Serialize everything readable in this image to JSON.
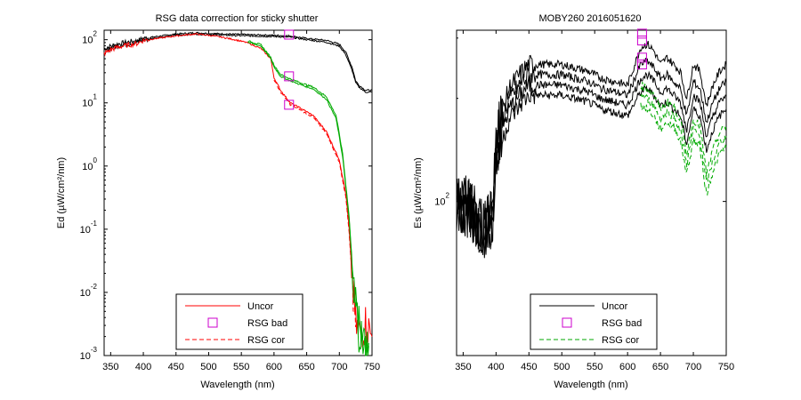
{
  "chart_data": [
    {
      "type": "line",
      "title": "RSG data correction for sticky shutter",
      "xlabel": "Wavelength (nm)",
      "ylabel": "Ed (µW/cm²/nm)",
      "xlim": [
        340,
        750
      ],
      "ylim_log10": [
        -3,
        2.15
      ],
      "yscale": "log",
      "grid": false,
      "legend_position": "lower-center",
      "x_ticks": [
        350,
        400,
        450,
        500,
        550,
        600,
        650,
        700,
        750
      ],
      "y_ticks": [
        {
          "value": 2,
          "base": "10",
          "exp": "2"
        },
        {
          "value": 1,
          "base": "10",
          "exp": "1"
        },
        {
          "value": 0,
          "base": "10",
          "exp": "0"
        },
        {
          "value": -1,
          "base": "10",
          "exp": "-1"
        },
        {
          "value": -2,
          "base": "10",
          "exp": "-2"
        },
        {
          "value": -3,
          "base": "10",
          "exp": "-3"
        }
      ],
      "legend": [
        {
          "label": "Uncor",
          "color": "#ff0000",
          "style": "solid"
        },
        {
          "label": "RSG bad",
          "color": "#cc00cc",
          "style": "marker-square"
        },
        {
          "label": "RSG cor",
          "color": "#ff0000",
          "style": "dashed"
        }
      ],
      "series": [
        {
          "color": "#000000",
          "style": "solid",
          "x": [
            340,
            350,
            360,
            370,
            380,
            390,
            400,
            420,
            450,
            480,
            500,
            530,
            560,
            600,
            625,
            650,
            680,
            700,
            710,
            720,
            725,
            730,
            740,
            750
          ],
          "log_values": [
            1.85,
            1.9,
            1.93,
            1.95,
            1.97,
            1.98,
            2.02,
            2.05,
            2.09,
            2.11,
            2.1,
            2.09,
            2.08,
            2.07,
            2.06,
            2.02,
            1.99,
            1.93,
            1.8,
            1.55,
            1.35,
            1.28,
            1.2,
            1.2
          ]
        },
        {
          "color": "#000000",
          "style": "solid",
          "x": [
            340,
            350,
            360,
            370,
            380,
            390,
            400,
            420,
            450,
            480,
            500,
            530,
            560,
            600,
            625,
            650,
            680,
            700,
            710,
            720,
            725,
            730,
            740,
            750
          ],
          "log_values": [
            1.82,
            1.87,
            1.9,
            1.92,
            1.94,
            1.96,
            2.0,
            2.03,
            2.07,
            2.09,
            2.08,
            2.07,
            2.06,
            2.05,
            2.04,
            2.0,
            1.96,
            1.9,
            1.76,
            1.5,
            1.32,
            1.25,
            1.17,
            1.17
          ]
        },
        {
          "color": "#ff0000",
          "style": "solid",
          "x": [
            340,
            350,
            360,
            370,
            380,
            390,
            400,
            420,
            450,
            480,
            500,
            520,
            540,
            560,
            580,
            595,
            600,
            610,
            625,
            640,
            660,
            680,
            700,
            710,
            715,
            720,
            725,
            730,
            740,
            750
          ],
          "log_values": [
            1.78,
            1.84,
            1.88,
            1.9,
            1.92,
            1.94,
            1.99,
            2.02,
            2.06,
            2.09,
            2.07,
            2.04,
            2.0,
            1.95,
            1.86,
            1.7,
            1.4,
            1.2,
            1.0,
            0.92,
            0.8,
            0.55,
            0.1,
            -0.45,
            -1.0,
            -1.8,
            -2.5,
            -2.65,
            -2.5,
            -2.7
          ]
        },
        {
          "color": "#ff0000",
          "style": "dashed",
          "x": [
            600,
            610,
            625,
            640,
            660,
            680,
            700,
            710,
            715,
            720,
            725
          ],
          "log_values": [
            1.37,
            1.17,
            0.97,
            0.89,
            0.77,
            0.52,
            0.06,
            -0.5,
            -1.05,
            -1.85,
            -2.55
          ]
        },
        {
          "color": "#00aa00",
          "style": "solid",
          "x": [
            560,
            580,
            595,
            600,
            610,
            625,
            640,
            660,
            680,
            695,
            705,
            715,
            720,
            725,
            730,
            735,
            740,
            745
          ],
          "log_values": [
            1.98,
            1.92,
            1.72,
            1.6,
            1.45,
            1.38,
            1.32,
            1.25,
            1.1,
            0.8,
            0.2,
            -0.8,
            -1.6,
            -2.2,
            -2.55,
            -2.7,
            -2.75,
            -2.8
          ]
        },
        {
          "color": "#00aa00",
          "style": "solid",
          "x": [
            560,
            580,
            595,
            600,
            610,
            625,
            640,
            660,
            680,
            695,
            705,
            715,
            720,
            725,
            730,
            735,
            740,
            745
          ],
          "log_values": [
            1.96,
            1.9,
            1.7,
            1.57,
            1.42,
            1.35,
            1.29,
            1.22,
            1.06,
            0.75,
            0.15,
            -0.85,
            -1.65,
            -2.25,
            -2.6,
            -2.75,
            -2.8,
            -2.85
          ]
        }
      ],
      "markers": [
        {
          "x": 623,
          "log_value": 2.08
        },
        {
          "x": 623,
          "log_value": 1.42
        },
        {
          "x": 623,
          "log_value": 0.97
        }
      ]
    },
    {
      "type": "line",
      "title": "MOBY260  2016051620",
      "xlabel": "Wavelength (nm)",
      "ylabel": "Es (µW/cm²/nm)",
      "xlim": [
        340,
        750
      ],
      "yscale": "log",
      "grid": false,
      "legend_position": "lower-center",
      "x_ticks": [
        350,
        400,
        450,
        500,
        550,
        600,
        650,
        700,
        750
      ],
      "y_ticks": [
        {
          "value": 2,
          "base": "10",
          "exp": "2"
        }
      ],
      "legend": [
        {
          "label": "Uncor",
          "color": "#000000",
          "style": "solid"
        },
        {
          "label": "RSG bad",
          "color": "#cc00cc",
          "style": "marker-square"
        },
        {
          "label": "RSG cor",
          "color": "#00aa00",
          "style": "dashed"
        }
      ],
      "series": [
        {
          "color": "#000000",
          "style": "solid",
          "x": [
            340,
            360,
            380,
            395,
            400,
            420,
            440,
            450,
            470,
            500,
            520,
            540,
            560,
            580,
            600,
            620,
            630,
            640,
            650,
            660,
            680,
            690,
            700,
            710,
            720,
            730,
            740,
            750
          ],
          "log_values": [
            2.0,
            1.98,
            1.92,
            1.95,
            2.2,
            2.33,
            2.38,
            2.4,
            2.4,
            2.4,
            2.39,
            2.38,
            2.36,
            2.35,
            2.34,
            2.45,
            2.46,
            2.44,
            2.4,
            2.42,
            2.38,
            2.3,
            2.4,
            2.38,
            2.28,
            2.34,
            2.38,
            2.4
          ]
        },
        {
          "color": "#000000",
          "style": "solid",
          "x": [
            340,
            360,
            380,
            395,
            400,
            420,
            440,
            450,
            470,
            500,
            520,
            540,
            560,
            580,
            600,
            620,
            630,
            640,
            650,
            660,
            680,
            690,
            700,
            710,
            720,
            730,
            740,
            750
          ],
          "log_values": [
            2.0,
            1.98,
            1.92,
            1.95,
            2.18,
            2.3,
            2.35,
            2.37,
            2.37,
            2.37,
            2.36,
            2.35,
            2.33,
            2.32,
            2.31,
            2.4,
            2.41,
            2.39,
            2.36,
            2.37,
            2.33,
            2.25,
            2.35,
            2.33,
            2.23,
            2.29,
            2.33,
            2.35
          ]
        },
        {
          "color": "#000000",
          "style": "solid",
          "x": [
            340,
            360,
            380,
            395,
            400,
            420,
            440,
            450,
            470,
            500,
            520,
            540,
            560,
            580,
            600,
            620,
            630,
            640,
            650,
            660,
            680,
            690,
            700,
            710,
            720,
            730,
            740,
            750
          ],
          "log_values": [
            2.0,
            1.98,
            1.92,
            1.95,
            2.15,
            2.27,
            2.32,
            2.34,
            2.34,
            2.34,
            2.33,
            2.32,
            2.3,
            2.29,
            2.28,
            2.36,
            2.37,
            2.35,
            2.32,
            2.33,
            2.29,
            2.21,
            2.31,
            2.29,
            2.19,
            2.25,
            2.29,
            2.31
          ]
        },
        {
          "color": "#000000",
          "style": "solid",
          "x": [
            340,
            360,
            380,
            395,
            400,
            420,
            440,
            450,
            470,
            500,
            520,
            540,
            560,
            580,
            600,
            620,
            630,
            640,
            650,
            660,
            680,
            690,
            700,
            710,
            720,
            730,
            740,
            750
          ],
          "log_values": [
            2.0,
            1.98,
            1.92,
            1.95,
            2.12,
            2.24,
            2.29,
            2.31,
            2.31,
            2.31,
            2.3,
            2.29,
            2.27,
            2.26,
            2.25,
            2.32,
            2.33,
            2.31,
            2.28,
            2.29,
            2.25,
            2.17,
            2.27,
            2.25,
            2.15,
            2.21,
            2.25,
            2.27
          ]
        },
        {
          "color": "#00aa00",
          "style": "dashed",
          "x": [
            620,
            630,
            640,
            650,
            660,
            670,
            680,
            690,
            700,
            710,
            720,
            730,
            740,
            750
          ],
          "log_values": [
            2.34,
            2.33,
            2.31,
            2.27,
            2.29,
            2.28,
            2.24,
            2.14,
            2.24,
            2.22,
            2.08,
            2.15,
            2.2,
            2.22
          ]
        },
        {
          "color": "#00aa00",
          "style": "dashed",
          "x": [
            620,
            630,
            640,
            650,
            660,
            670,
            680,
            690,
            700,
            710,
            720,
            730,
            740,
            750
          ],
          "log_values": [
            2.31,
            2.3,
            2.28,
            2.24,
            2.26,
            2.25,
            2.21,
            2.11,
            2.21,
            2.19,
            2.05,
            2.12,
            2.17,
            2.19
          ]
        },
        {
          "color": "#00aa00",
          "style": "dashed",
          "x": [
            620,
            630,
            640,
            650,
            660,
            670,
            680,
            690,
            700,
            710,
            720,
            730,
            740,
            750
          ],
          "log_values": [
            2.28,
            2.27,
            2.25,
            2.21,
            2.23,
            2.22,
            2.18,
            2.08,
            2.18,
            2.16,
            2.02,
            2.09,
            2.14,
            2.16
          ]
        }
      ],
      "markers": [
        {
          "x": 622,
          "log_value": 2.49
        },
        {
          "x": 622,
          "log_value": 2.47
        },
        {
          "x": 622,
          "log_value": 2.42
        },
        {
          "x": 622,
          "log_value": 2.4
        }
      ]
    }
  ]
}
